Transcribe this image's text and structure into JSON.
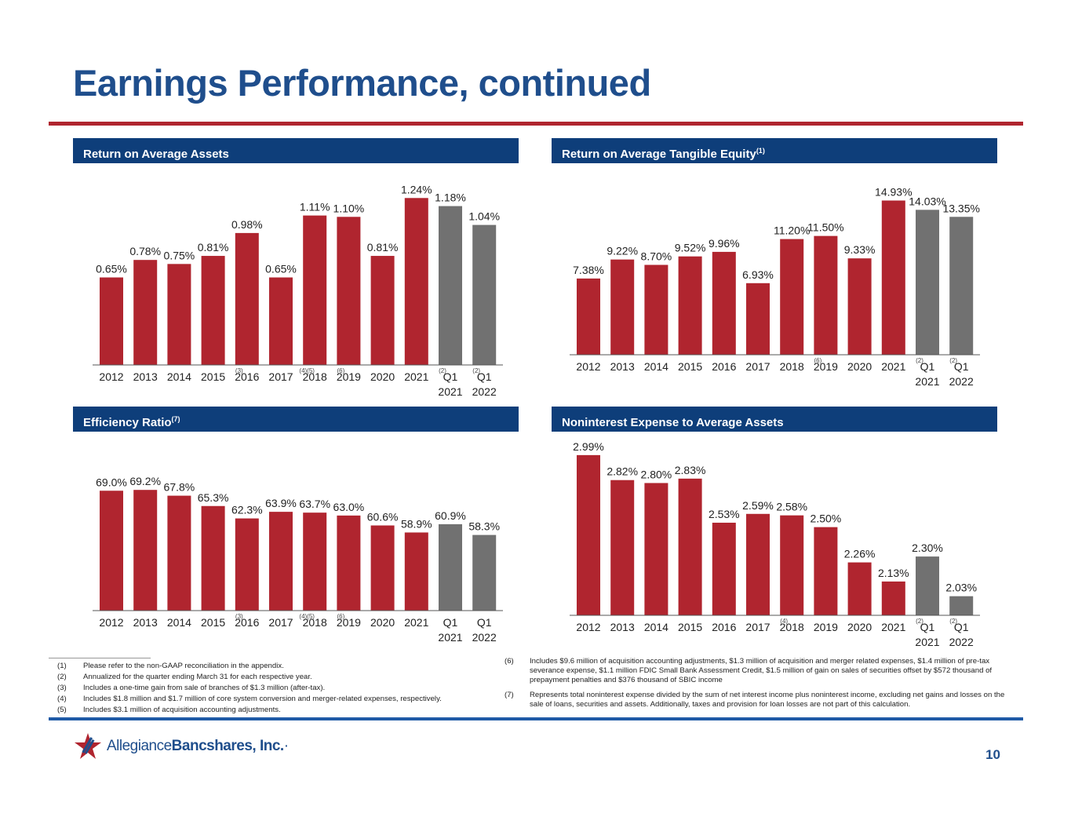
{
  "title": "Earnings Performance, continued",
  "colors": {
    "brand_blue": "#0e3e7a",
    "title_blue": "#1f4e8c",
    "annual_bar": "#b0252f",
    "quarter_bar": "#717171",
    "rule_red": "#b0252f",
    "rule_blue": "#1f5aa6"
  },
  "charts": {
    "roaa": {
      "title": "Return on Average Assets",
      "title_sup": ""
    },
    "rotce": {
      "title": "Return on Average Tangible Equity",
      "title_sup": "(1)"
    },
    "efficiency": {
      "title": "Efficiency Ratio",
      "title_sup": "(7)"
    },
    "nie": {
      "title": "Noninterest Expense to Average Assets",
      "title_sup": ""
    }
  },
  "chart_data": [
    {
      "id": "roaa",
      "type": "bar",
      "title": "Return on Average Assets",
      "categories": [
        "2012",
        "2013",
        "2014",
        "2015",
        "2016",
        "2017",
        "2018",
        "2019",
        "2020",
        "2021",
        "Q1 2021",
        "Q1 2022"
      ],
      "values": [
        0.65,
        0.78,
        0.75,
        0.81,
        0.98,
        0.65,
        1.11,
        1.1,
        0.81,
        1.24,
        1.18,
        1.04
      ],
      "labels": [
        "0.65%",
        "0.78%",
        "0.75%",
        "0.81%",
        "0.98%",
        "0.65%",
        "1.11%",
        "1.10%",
        "0.81%",
        "1.24%",
        "1.18%",
        "1.04%"
      ],
      "notes": [
        "",
        "",
        "",
        "",
        "(3)",
        "",
        "(4)(5)",
        "(6)",
        "",
        "",
        "(2)",
        "(2)"
      ],
      "bar_kind": [
        "annual",
        "annual",
        "annual",
        "annual",
        "annual",
        "annual",
        "annual",
        "annual",
        "annual",
        "annual",
        "quarter",
        "quarter"
      ],
      "ylim": [
        0,
        1.3
      ]
    },
    {
      "id": "rotce",
      "type": "bar",
      "title": "Return on Average Tangible Equity",
      "categories": [
        "2012",
        "2013",
        "2014",
        "2015",
        "2016",
        "2017",
        "2018",
        "2019",
        "2020",
        "2021",
        "Q1 2021",
        "Q1 2022"
      ],
      "values": [
        7.38,
        9.22,
        8.7,
        9.52,
        9.96,
        6.93,
        11.2,
        11.5,
        9.33,
        14.93,
        14.03,
        13.35
      ],
      "labels": [
        "7.38%",
        "9.22%",
        "8.70%",
        "9.52%",
        "9.96%",
        "6.93%",
        "11.20%",
        "11.50%",
        "9.33%",
        "14.93%",
        "14.03%",
        "13.35%"
      ],
      "notes": [
        "",
        "",
        "",
        "",
        "",
        "",
        "",
        "(6)",
        "",
        "",
        "(2)",
        "(2)"
      ],
      "bar_kind": [
        "annual",
        "annual",
        "annual",
        "annual",
        "annual",
        "annual",
        "annual",
        "annual",
        "annual",
        "annual",
        "quarter",
        "quarter"
      ],
      "ylim": [
        0,
        15.5
      ]
    },
    {
      "id": "efficiency",
      "type": "bar",
      "title": "Efficiency Ratio",
      "categories": [
        "2012",
        "2013",
        "2014",
        "2015",
        "2016",
        "2017",
        "2018",
        "2019",
        "2020",
        "2021",
        "Q1 2021",
        "Q1 2022"
      ],
      "values": [
        69.0,
        69.2,
        67.8,
        65.3,
        62.3,
        63.9,
        63.7,
        63.0,
        60.6,
        58.9,
        60.9,
        58.3
      ],
      "labels": [
        "69.0%",
        "69.2%",
        "67.8%",
        "65.3%",
        "62.3%",
        "63.9%",
        "63.7%",
        "63.0%",
        "60.6%",
        "58.9%",
        "60.9%",
        "58.3%"
      ],
      "notes": [
        "",
        "",
        "",
        "",
        "(3)",
        "",
        "(4)(5)",
        "(6)",
        "",
        "",
        "",
        ""
      ],
      "bar_kind": [
        "annual",
        "annual",
        "annual",
        "annual",
        "annual",
        "annual",
        "annual",
        "annual",
        "annual",
        "annual",
        "quarter",
        "quarter"
      ],
      "ylim": [
        40,
        70
      ]
    },
    {
      "id": "nie",
      "type": "bar",
      "title": "Noninterest Expense to Average Assets",
      "categories": [
        "2012",
        "2013",
        "2014",
        "2015",
        "2016",
        "2017",
        "2018",
        "2019",
        "2020",
        "2021",
        "Q1 2021",
        "Q1 2022"
      ],
      "values": [
        2.99,
        2.82,
        2.8,
        2.83,
        2.53,
        2.59,
        2.58,
        2.5,
        2.26,
        2.13,
        2.3,
        2.03
      ],
      "labels": [
        "2.99%",
        "2.82%",
        "2.80%",
        "2.83%",
        "2.53%",
        "2.59%",
        "2.58%",
        "2.50%",
        "2.26%",
        "2.13%",
        "2.30%",
        "2.03%"
      ],
      "notes": [
        "",
        "",
        "",
        "",
        "",
        "",
        "(4)",
        "",
        "",
        "",
        "(2)",
        "(2)"
      ],
      "bar_kind": [
        "annual",
        "annual",
        "annual",
        "annual",
        "annual",
        "annual",
        "annual",
        "annual",
        "annual",
        "annual",
        "quarter",
        "quarter"
      ],
      "ylim": [
        1.9,
        3.0
      ]
    }
  ],
  "footnotes_left": [
    {
      "num": "(1)",
      "text": "Please refer to the non-GAAP reconciliation in the appendix."
    },
    {
      "num": "(2)",
      "text": "Annualized for the quarter ending March 31 for each respective year."
    },
    {
      "num": "(3)",
      "text": "Includes a one-time gain from sale of branches of $1.3 million (after-tax)."
    },
    {
      "num": "(4)",
      "text": "Includes $1.8 million and $1.7 million of core system conversion and merger-related expenses, respectively."
    },
    {
      "num": "(5)",
      "text": "Includes $3.1 million of acquisition accounting adjustments."
    }
  ],
  "footnotes_right": [
    {
      "num": "(6)",
      "text": "Includes $9.6 million of acquisition accounting adjustments, $1.3 million of acquisition and merger related expenses, $1.4 million of pre-tax severance expense, $1.1 million FDIC Small Bank Assessment Credit, $1.5 million of gain on sales of securities offset by $572 thousand of prepayment penalties and $376 thousand of SBIC income"
    },
    {
      "num": "(7)",
      "text": "Represents total noninterest expense divided by the sum of net interest income plus noninterest income, excluding net gains and losses on the sale of loans, securities and assets. Additionally, taxes and provision for loan losses are not part of this calculation."
    }
  ],
  "logo": {
    "part1": "Allegiance",
    "part2": "Bancshares, Inc.",
    "mark": "·"
  },
  "page_number": "10"
}
